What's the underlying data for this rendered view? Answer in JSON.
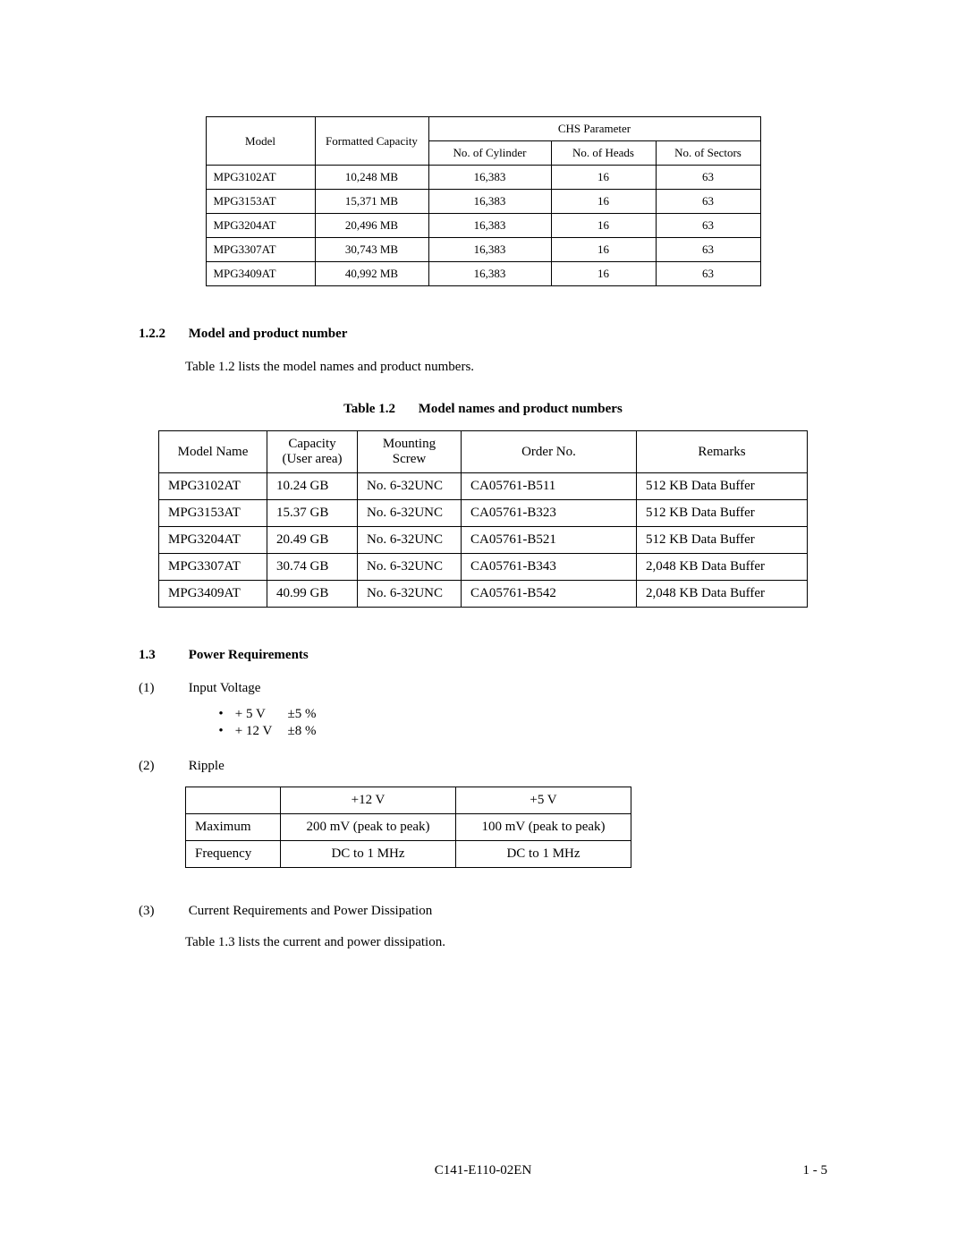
{
  "table1": {
    "headers": {
      "model": "Model",
      "capacity": "Formatted Capacity",
      "chs_group": "CHS Parameter",
      "cyl": "No. of Cylinder",
      "heads": "No. of Heads",
      "sectors": "No. of Sectors"
    },
    "rows": [
      {
        "model": "MPG3102AT",
        "cap": "10,248 MB",
        "cyl": "16,383",
        "heads": "16",
        "sectors": "63"
      },
      {
        "model": "MPG3153AT",
        "cap": "15,371 MB",
        "cyl": "16,383",
        "heads": "16",
        "sectors": "63"
      },
      {
        "model": "MPG3204AT",
        "cap": "20,496 MB",
        "cyl": "16,383",
        "heads": "16",
        "sectors": "63"
      },
      {
        "model": "MPG3307AT",
        "cap": "30,743 MB",
        "cyl": "16,383",
        "heads": "16",
        "sectors": "63"
      },
      {
        "model": "MPG3409AT",
        "cap": "40,992 MB",
        "cyl": "16,383",
        "heads": "16",
        "sectors": "63"
      }
    ]
  },
  "section122": {
    "num": "1.2.2",
    "title": "Model and product number",
    "para": "Table 1.2 lists the model names and product numbers."
  },
  "table2": {
    "caption_num": "Table 1.2",
    "caption_title": "Model names and product numbers",
    "headers": {
      "name": "Model Name",
      "cap_line1": "Capacity",
      "cap_line2": "(User area)",
      "screw_line1": "Mounting",
      "screw_line2": "Screw",
      "order": "Order No.",
      "remarks": "Remarks"
    },
    "rows": [
      {
        "name": "MPG3102AT",
        "cap": "10.24 GB",
        "screw": "No. 6-32UNC",
        "order": "CA05761-B511",
        "remarks": "512 KB Data Buffer"
      },
      {
        "name": "MPG3153AT",
        "cap": "15.37 GB",
        "screw": "No. 6-32UNC",
        "order": "CA05761-B323",
        "remarks": "512 KB Data Buffer"
      },
      {
        "name": "MPG3204AT",
        "cap": "20.49 GB",
        "screw": "No. 6-32UNC",
        "order": "CA05761-B521",
        "remarks": "512 KB Data Buffer"
      },
      {
        "name": "MPG3307AT",
        "cap": "30.74 GB",
        "screw": "No. 6-32UNC",
        "order": "CA05761-B343",
        "remarks": "2,048 KB Data Buffer"
      },
      {
        "name": "MPG3409AT",
        "cap": "40.99 GB",
        "screw": "No. 6-32UNC",
        "order": "CA05761-B542",
        "remarks": "2,048 KB Data Buffer"
      }
    ]
  },
  "section13": {
    "num": "1.3",
    "title": "Power Requirements",
    "item1_num": "(1)",
    "item1_label": "Input Voltage",
    "bullet1_volt": "+ 5 V",
    "bullet1_tol": "±5 %",
    "bullet2_volt": "+ 12 V",
    "bullet2_tol": "±8 %",
    "item2_num": "(2)",
    "item2_label": "Ripple",
    "item3_num": "(3)",
    "item3_label": "Current Requirements and Power Dissipation",
    "item3_para": "Table 1.3 lists the current and power dissipation."
  },
  "table3": {
    "headers": {
      "blank": "",
      "c12v": "+12 V",
      "c5v": "+5 V"
    },
    "rows": [
      {
        "label": "Maximum",
        "v12": "200 mV (peak to peak)",
        "v5": "100 mV (peak to peak)"
      },
      {
        "label": "Frequency",
        "v12": "DC to 1 MHz",
        "v5": "DC to 1 MHz"
      }
    ]
  },
  "footer": {
    "doc": "C141-E110-02EN",
    "page": "1 - 5"
  }
}
